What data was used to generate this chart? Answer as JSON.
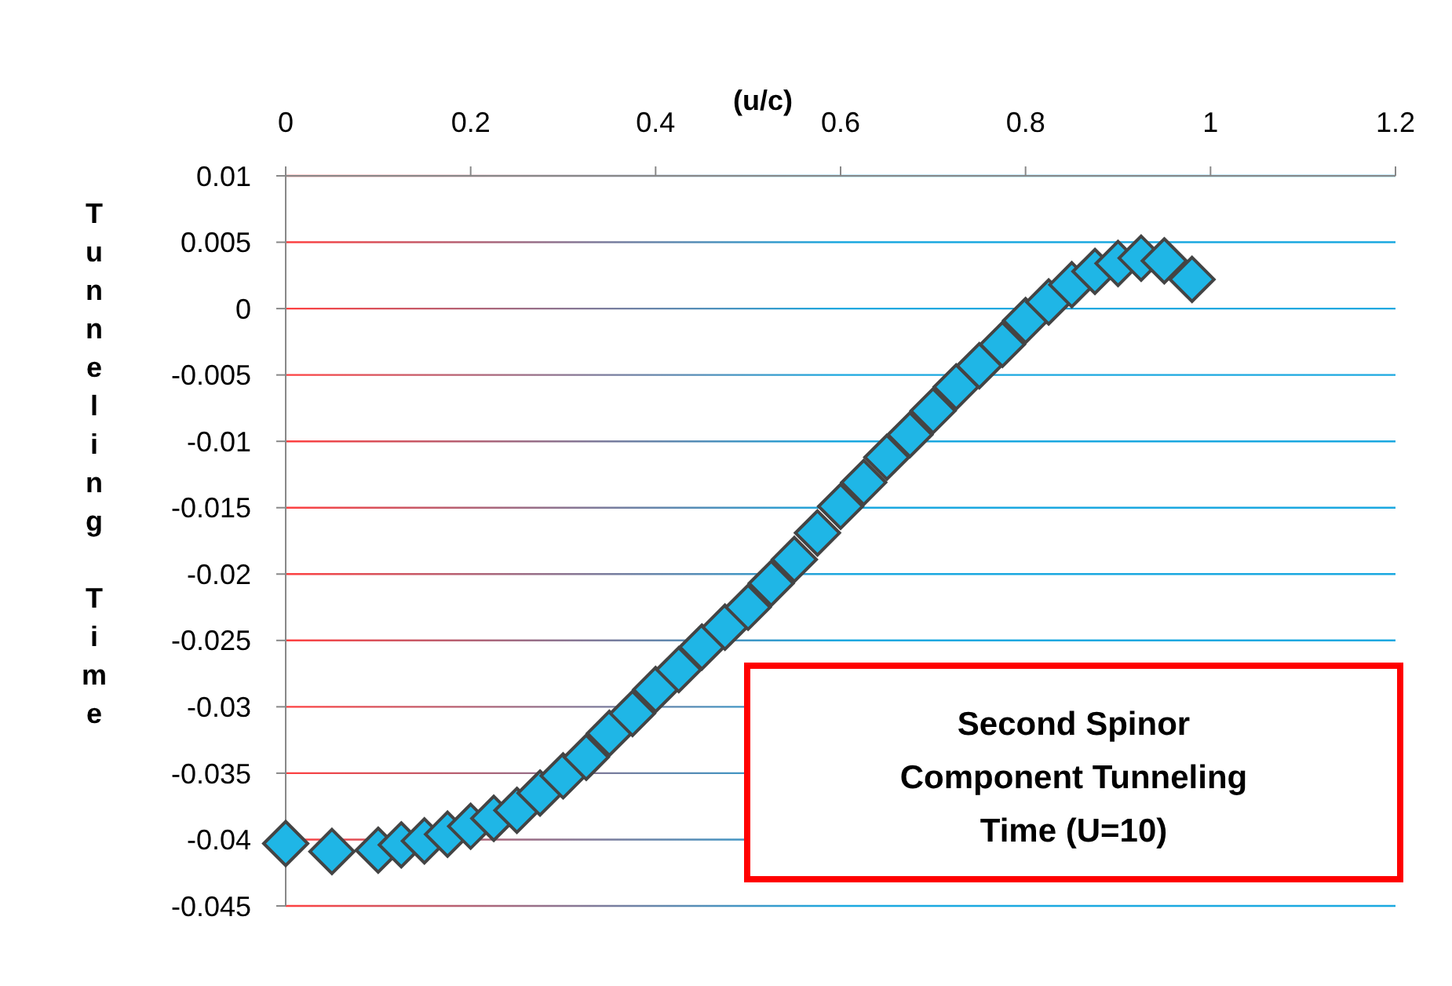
{
  "chart_data": {
    "type": "scatter",
    "xlabel": "(u/c)",
    "ylabel": "Tunneling Time",
    "x": [
      0,
      0.05,
      0.1,
      0.125,
      0.15,
      0.175,
      0.2,
      0.225,
      0.25,
      0.275,
      0.3,
      0.325,
      0.35,
      0.375,
      0.4,
      0.425,
      0.45,
      0.475,
      0.5,
      0.525,
      0.55,
      0.575,
      0.6,
      0.625,
      0.65,
      0.675,
      0.7,
      0.725,
      0.75,
      0.775,
      0.8,
      0.825,
      0.85,
      0.875,
      0.9,
      0.925,
      0.95,
      0.98
    ],
    "series": [
      {
        "color": "#1fb6e6",
        "values": [
          -0.0403,
          -0.0409,
          -0.0408,
          -0.0404,
          -0.0401,
          -0.0396,
          -0.039,
          -0.0384,
          -0.0378,
          -0.0365,
          -0.0352,
          -0.0338,
          -0.032,
          -0.0305,
          -0.0287,
          -0.0272,
          -0.0255,
          -0.024,
          -0.0225,
          -0.0207,
          -0.0189,
          -0.0169,
          -0.0149,
          -0.0131,
          -0.0112,
          -0.0095,
          -0.0077,
          -0.0059,
          -0.0043,
          -0.0027,
          -0.0009,
          0.0005,
          0.0018,
          0.0028,
          0.0034,
          0.0038,
          0.0036,
          0.0022
        ]
      }
    ],
    "xlim": [
      0,
      1.2
    ],
    "xticks": [
      0,
      0.2,
      0.4,
      0.6,
      0.8,
      1,
      1.2
    ],
    "ylim": [
      -0.045,
      0.01
    ],
    "yticks": [
      -0.045,
      -0.04,
      -0.035,
      -0.03,
      -0.025,
      -0.02,
      -0.015,
      -0.01,
      -0.005,
      0,
      0.005,
      0.01
    ],
    "grid": "y",
    "marker": "diamond",
    "annotations": [
      "Second Spinor Component Tunneling Time (U=10)"
    ]
  }
}
